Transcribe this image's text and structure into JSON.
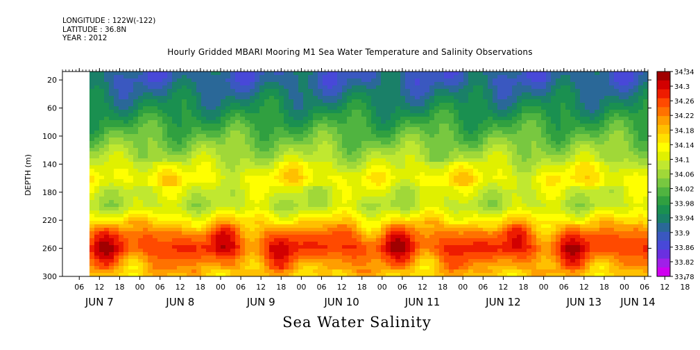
{
  "header": {
    "longitude": "LONGITUDE : 122W(-122)",
    "latitude": "LATITUDE : 36.8N",
    "year": "YEAR : 2012"
  },
  "chart_data": {
    "type": "heatmap",
    "title": "Hourly Gridded MBARI Mooring M1 Sea Water Temperature and Salinity Observations",
    "xlabel": "Sea Water Salinity",
    "ylabel": "DEPTH (m)",
    "y_ticks": [
      20,
      60,
      100,
      140,
      180,
      220,
      260,
      300
    ],
    "y_range": [
      300,
      8
    ],
    "x_hour_ticks": [
      "06",
      "12",
      "18",
      "00",
      "06",
      "12",
      "18",
      "00",
      "06",
      "12",
      "18",
      "00",
      "06",
      "12",
      "18",
      "00",
      "06",
      "12",
      "18",
      "00",
      "06",
      "12",
      "18",
      "00",
      "06",
      "12",
      "18",
      "00",
      "06",
      "12",
      "18",
      "00"
    ],
    "x_date_labels": [
      "JUN  7",
      "JUN  8",
      "JUN  9",
      "JUN 10",
      "JUN 11",
      "JUN 12",
      "JUN 13",
      "JUN 14"
    ],
    "x_range_hours": [
      "2012-06-07 01:00",
      "2012-06-14 07:00"
    ],
    "data_start": "2012-06-07 12:00",
    "colorbar_labels": [
      "34.34",
      "34.3",
      "34.26",
      "34.22",
      "34.18",
      "34.14",
      "34.1",
      "34.06",
      "34.02",
      "33.98",
      "33.94",
      "33.9",
      "33.86",
      "33.82",
      "33.78"
    ],
    "colorbar_colors": [
      "#a00000",
      "#d20000",
      "#ee1c00",
      "#ff4a00",
      "#ff7200",
      "#ff9e00",
      "#ffc000",
      "#ffe000",
      "#ffff00",
      "#e0f000",
      "#c0e830",
      "#a0d838",
      "#78c840",
      "#50b440",
      "#30a040",
      "#1a9050",
      "#1a8068",
      "#2a6898",
      "#3a58c0",
      "#4848d8",
      "#6a30e0",
      "#a020e8",
      "#d000f0"
    ],
    "depth_profile": [
      {
        "depth": 20,
        "value": 33.89
      },
      {
        "depth": 60,
        "value": 33.95
      },
      {
        "depth": 100,
        "value": 34.02
      },
      {
        "depth": 140,
        "value": 34.09
      },
      {
        "depth": 160,
        "value": 34.13
      },
      {
        "depth": 180,
        "value": 34.1
      },
      {
        "depth": 200,
        "value": 34.08
      },
      {
        "depth": 220,
        "value": 34.16
      },
      {
        "depth": 240,
        "value": 34.25
      },
      {
        "depth": 260,
        "value": 34.29
      },
      {
        "depth": 280,
        "value": 34.23
      },
      {
        "depth": 300,
        "value": 34.18
      }
    ]
  }
}
